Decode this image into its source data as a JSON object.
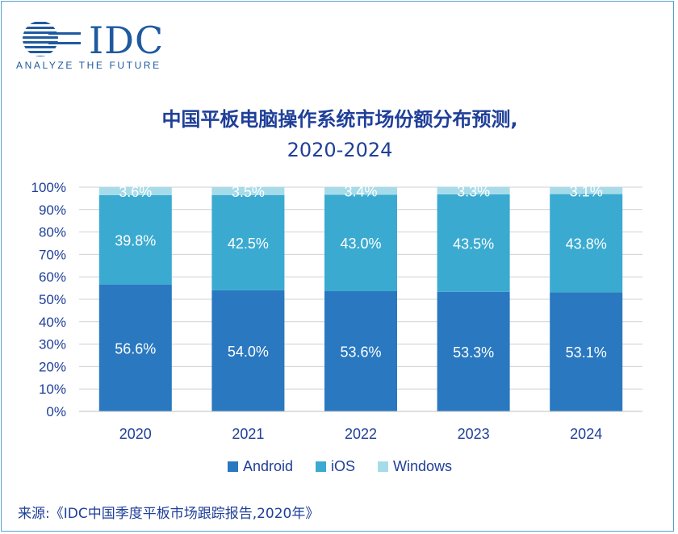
{
  "logo": {
    "word": "IDC",
    "tagline": "ANALYZE THE FUTURE"
  },
  "title_line1": "中国平板电脑操作系统市场份额分布预测,",
  "title_line2": "2020-2024",
  "source": "来源:《IDC中国季度平板市场跟踪报告,2020年》",
  "colors": {
    "Android": "#2978c0",
    "iOS": "#3aaad0",
    "Windows": "#a6dcea",
    "text": "#1f3f99"
  },
  "chart_data": {
    "type": "bar",
    "stacked": true,
    "categories": [
      "2020",
      "2021",
      "2022",
      "2023",
      "2024"
    ],
    "series": [
      {
        "name": "Android",
        "values": [
          56.6,
          54.0,
          53.6,
          53.3,
          53.1
        ],
        "labels": [
          "56.6%",
          "54.0%",
          "53.6%",
          "53.3%",
          "53.1%"
        ]
      },
      {
        "name": "iOS",
        "values": [
          39.8,
          42.5,
          43.0,
          43.5,
          43.8
        ],
        "labels": [
          "39.8%",
          "42.5%",
          "43.0%",
          "43.5%",
          "43.8%"
        ]
      },
      {
        "name": "Windows",
        "values": [
          3.6,
          3.5,
          3.4,
          3.3,
          3.1
        ],
        "labels": [
          "3.6%",
          "3.5%",
          "3.4%",
          "3.3%",
          "3.1%"
        ]
      }
    ],
    "yticks": [
      "0%",
      "10%",
      "20%",
      "30%",
      "40%",
      "50%",
      "60%",
      "70%",
      "80%",
      "90%",
      "100%"
    ],
    "ylim": [
      0,
      100
    ],
    "grid": true,
    "legend_position": "bottom"
  }
}
